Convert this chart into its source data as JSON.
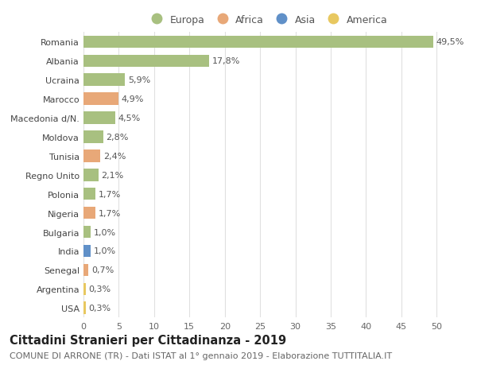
{
  "countries": [
    "Romania",
    "Albania",
    "Ucraina",
    "Marocco",
    "Macedonia d/N.",
    "Moldova",
    "Tunisia",
    "Regno Unito",
    "Polonia",
    "Nigeria",
    "Bulgaria",
    "India",
    "Senegal",
    "Argentina",
    "USA"
  ],
  "values": [
    49.5,
    17.8,
    5.9,
    4.9,
    4.5,
    2.8,
    2.4,
    2.1,
    1.7,
    1.7,
    1.0,
    1.0,
    0.7,
    0.3,
    0.3
  ],
  "labels": [
    "49,5%",
    "17,8%",
    "5,9%",
    "4,9%",
    "4,5%",
    "2,8%",
    "2,4%",
    "2,1%",
    "1,7%",
    "1,7%",
    "1,0%",
    "1,0%",
    "0,7%",
    "0,3%",
    "0,3%"
  ],
  "continents": [
    "Europa",
    "Europa",
    "Europa",
    "Africa",
    "Europa",
    "Europa",
    "Africa",
    "Europa",
    "Europa",
    "Africa",
    "Europa",
    "Asia",
    "Africa",
    "America",
    "America"
  ],
  "continent_colors": {
    "Europa": "#a8c080",
    "Africa": "#e8a878",
    "Asia": "#6090c8",
    "America": "#e8c860"
  },
  "legend_order": [
    "Europa",
    "Africa",
    "Asia",
    "America"
  ],
  "title": "Cittadini Stranieri per Cittadinanza - 2019",
  "subtitle": "COMUNE DI ARRONE (TR) - Dati ISTAT al 1° gennaio 2019 - Elaborazione TUTTITALIA.IT",
  "xlim": [
    0,
    52
  ],
  "xticks": [
    0,
    5,
    10,
    15,
    20,
    25,
    30,
    35,
    40,
    45,
    50
  ],
  "background_color": "#ffffff",
  "grid_color": "#e0e0e0",
  "bar_height": 0.65,
  "title_fontsize": 10.5,
  "subtitle_fontsize": 8,
  "label_fontsize": 8,
  "tick_fontsize": 8,
  "legend_fontsize": 9
}
